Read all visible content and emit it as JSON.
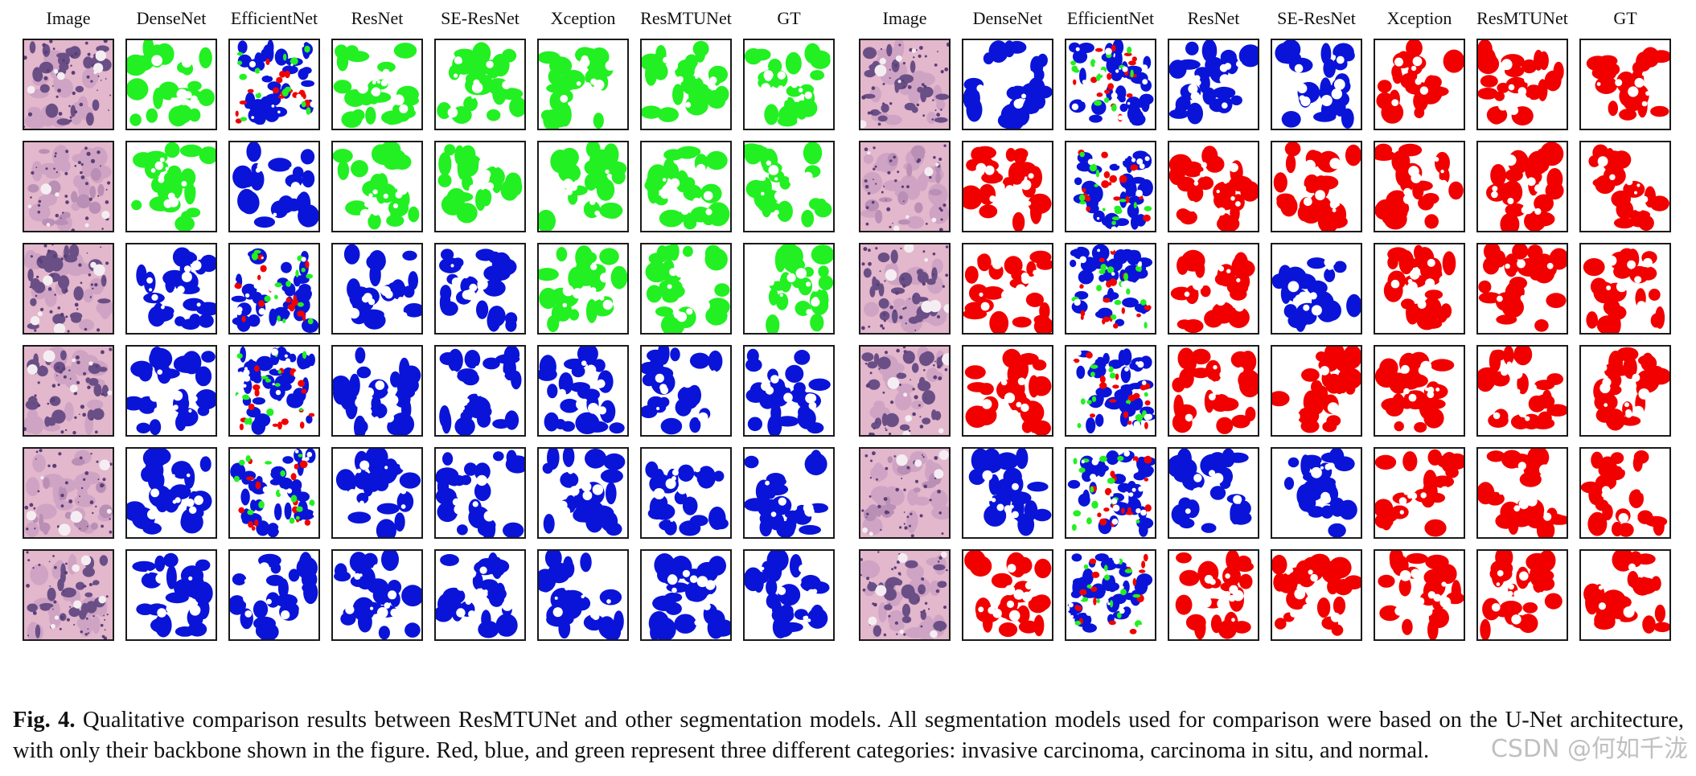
{
  "figure": {
    "panels": [
      {
        "id": "left",
        "columns": [
          "Image",
          "DenseNet",
          "EfficientNet",
          "ResNet",
          "SE-ResNet",
          "Xception",
          "ResMTUNet",
          "GT"
        ],
        "dominant_classes": [
          "green",
          "green",
          "green",
          "blue",
          "blue",
          "blue"
        ],
        "predictions": [
          [
            "green",
            "mixed",
            "green",
            "green",
            "green",
            "green",
            "green"
          ],
          [
            "green",
            "blue",
            "green",
            "green",
            "green",
            "green",
            "green"
          ],
          [
            "blue",
            "mixed",
            "blue",
            "blue",
            "green",
            "green",
            "green"
          ],
          [
            "blue",
            "mixed",
            "blue",
            "blue",
            "blue",
            "blue",
            "blue"
          ],
          [
            "blue",
            "mixed",
            "blue",
            "blue",
            "blue",
            "blue",
            "blue"
          ],
          [
            "blue",
            "blue",
            "blue",
            "blue",
            "blue",
            "blue",
            "blue"
          ]
        ]
      },
      {
        "id": "right",
        "columns": [
          "Image",
          "DenseNet",
          "EfficientNet",
          "ResNet",
          "SE-ResNet",
          "Xception",
          "ResMTUNet",
          "GT"
        ],
        "dominant_classes": [
          "red",
          "red",
          "red",
          "red",
          "red",
          "red"
        ],
        "predictions": [
          [
            "blue",
            "mixed",
            "blue",
            "blue",
            "red",
            "red",
            "red"
          ],
          [
            "red",
            "mixed",
            "red",
            "red",
            "red",
            "red",
            "red"
          ],
          [
            "red",
            "mixed",
            "red",
            "blue",
            "red",
            "red",
            "red"
          ],
          [
            "red",
            "mixed",
            "red",
            "red",
            "red",
            "red",
            "red"
          ],
          [
            "blue",
            "mixed",
            "blue",
            "blue",
            "red",
            "red",
            "red"
          ],
          [
            "red",
            "mixed",
            "red",
            "red",
            "red",
            "red",
            "red"
          ]
        ]
      }
    ],
    "class_colors": {
      "red": "#f20000",
      "blue": "#0a14d8",
      "green": "#22f022",
      "tissue_dark": "#6a4f86",
      "tissue_light": "#e3b7cc"
    }
  },
  "caption": {
    "label": "Fig. 4.",
    "text": "Qualitative comparison results between ResMTUNet and other segmentation models. All segmentation models used for comparison were based on the U-Net architecture, with only their backbone shown in the figure. Red, blue, and green represent three different categories: invasive carcinoma, carcinoma in situ, and normal."
  },
  "watermark": "CSDN @何如千泷"
}
